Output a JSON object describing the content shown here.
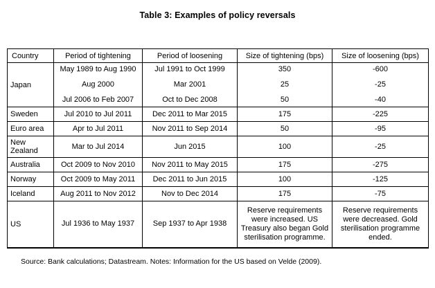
{
  "title": "Table 3: Examples of policy reversals",
  "table": {
    "headers": [
      "Country",
      "Period of tightening",
      "Period of loosening",
      "Size of tightening (bps)",
      "Size of loosening (bps)"
    ],
    "rows": [
      {
        "country": "Japan",
        "entries": [
          [
            "May 1989 to Aug 1990",
            "Jul 1991 to Oct 1999",
            "350",
            "-600"
          ],
          [
            "Aug 2000",
            "Mar 2001",
            "25",
            "-25"
          ],
          [
            "Jul 2006 to Feb 2007",
            "Oct to Dec 2008",
            "50",
            "-40"
          ]
        ]
      },
      {
        "country": "Sweden",
        "entries": [
          [
            "Jul 2010 to Jul 2011",
            "Dec 2011 to Mar 2015",
            "175",
            "-225"
          ]
        ]
      },
      {
        "country": "Euro area",
        "entries": [
          [
            "Apr to Jul 2011",
            "Nov 2011 to Sep 2014",
            "50",
            "-95"
          ]
        ]
      },
      {
        "country": "New Zealand",
        "entries": [
          [
            "Mar to Jul 2014",
            "Jun 2015",
            "100",
            "-25"
          ]
        ]
      },
      {
        "country": "Australia",
        "entries": [
          [
            "Oct 2009 to Nov 2010",
            "Nov 2011 to May 2015",
            "175",
            "-275"
          ]
        ]
      },
      {
        "country": "Norway",
        "entries": [
          [
            "Oct 2009 to May 2011",
            "Dec 2011 to Jun 2015",
            "100",
            "-125"
          ]
        ]
      },
      {
        "country": "Iceland",
        "entries": [
          [
            "Aug 2011 to Nov 2012",
            "Nov to Dec 2014",
            "175",
            "-75"
          ]
        ]
      },
      {
        "country": "US",
        "entries": [
          [
            "Jul 1936 to May 1937",
            "Sep 1937 to Apr 1938",
            "Reserve requirements were increased. US Treasury also began Gold sterilisation programme.",
            "Reserve requirements were decreased. Gold sterilisation programme ended."
          ]
        ]
      }
    ]
  },
  "footer": "Source: Bank calculations; Datastream. Notes: Information for the US based on Velde (2009)."
}
